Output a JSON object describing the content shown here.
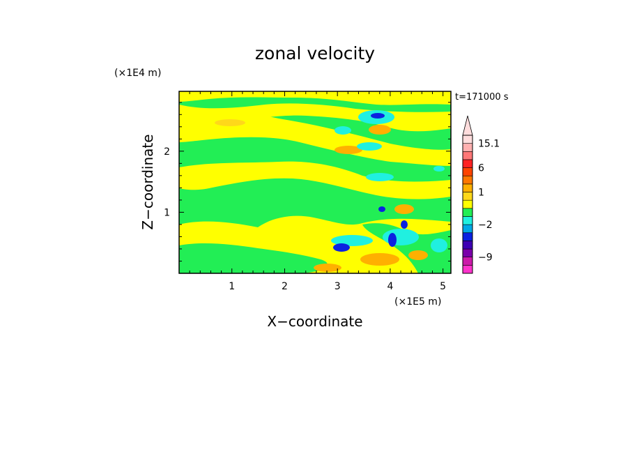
{
  "chart_data": {
    "type": "heatmap",
    "title": "zonal velocity",
    "xlabel": "X−coordinate",
    "ylabel": "Z−coordinate",
    "x_multiplier": "(×1E5 m)",
    "y_multiplier": "(×1E4 m)",
    "time_label": "t=171000 s",
    "xlim": [
      0,
      5.15
    ],
    "ylim": [
      0,
      2.98
    ],
    "x_ticks": [
      "1",
      "2",
      "3",
      "4",
      "5"
    ],
    "y_ticks": [
      "1",
      "2"
    ],
    "colorbar": {
      "levels": [
        {
          "color": "#ff33cc"
        },
        {
          "color": "#cc1aaa"
        },
        {
          "color": "#7a00aa"
        },
        {
          "color": "#3d00b4"
        },
        {
          "color": "#0b22e0"
        },
        {
          "color": "#00a8e6"
        },
        {
          "color": "#20f0e0"
        },
        {
          "color": "#22ee55"
        },
        {
          "color": "#ffff00"
        },
        {
          "color": "#ffd81a"
        },
        {
          "color": "#ffb000"
        },
        {
          "color": "#ff7700"
        },
        {
          "color": "#ff4400"
        },
        {
          "color": "#ff2222"
        },
        {
          "color": "#ff7777"
        },
        {
          "color": "#ffb0b0"
        },
        {
          "color": "#ffdddd"
        }
      ],
      "labels": [
        {
          "text": "15.1",
          "value": 15.1
        },
        {
          "text": "6",
          "value": 6
        },
        {
          "text": "1",
          "value": 1
        },
        {
          "text": "−2",
          "value": -2
        },
        {
          "text": "−9",
          "value": -9
        }
      ],
      "extend": "max"
    },
    "description_regions": {
      "background": "#22ee55"
    }
  }
}
